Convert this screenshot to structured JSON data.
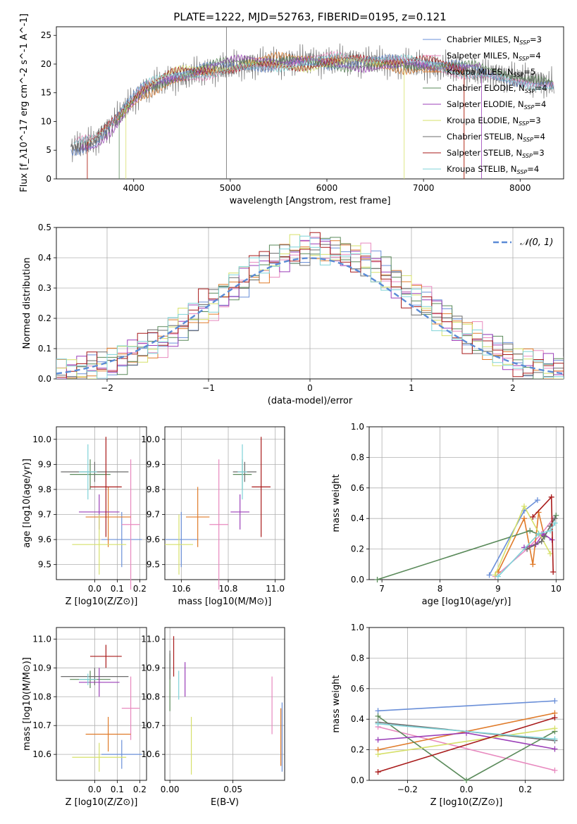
{
  "title": "PLATE=1222, MJD=52763, FIBERID=0195, z=0.121",
  "colors": {
    "Chabrier MILES": "#6a8fd8",
    "Salpeter MILES": "#e889bf",
    "Kroupa MILES": "#e07b2a",
    "Chabrier ELODIE": "#5a8a5a",
    "Salpeter ELODIE": "#9b3fb8",
    "Kroupa ELODIE": "#d6e06a",
    "Chabrier STELIB": "#6b6b6b",
    "Salpeter STELIB": "#a81a1a",
    "Kroupa STELIB": "#7fd3d8"
  },
  "chart_data": [
    {
      "id": "spectrum",
      "type": "line",
      "xlabel": "wavelength [Angstrom, rest frame]",
      "ylabel": "Flux [f_λ10^-17 erg cm^-2 s^-1 A^-1]",
      "xlim": [
        3200,
        8450
      ],
      "ylim": [
        0,
        26.5
      ],
      "xticks": [
        4000,
        5000,
        6000,
        7000,
        8000
      ],
      "yticks": [
        0,
        5,
        10,
        15,
        20,
        25
      ],
      "legend_position": "top-right",
      "legend": [
        {
          "label": "Chabrier MILES, N",
          "sub": "SSP",
          "suffix": "=3"
        },
        {
          "label": "Salpeter MILES, N",
          "sub": "SSP",
          "suffix": "=4"
        },
        {
          "label": "Kroupa MILES, N",
          "sub": "SSP",
          "suffix": "=5"
        },
        {
          "label": "Chabrier ELODIE, N",
          "sub": "SSP",
          "suffix": "=4"
        },
        {
          "label": "Salpeter ELODIE, N",
          "sub": "SSP",
          "suffix": "=4"
        },
        {
          "label": "Kroupa ELODIE, N",
          "sub": "SSP",
          "suffix": "=3"
        },
        {
          "label": "Chabrier STELIB, N",
          "sub": "SSP",
          "suffix": "=4"
        },
        {
          "label": "Salpeter STELIB, N",
          "sub": "SSP",
          "suffix": "=3"
        },
        {
          "label": "Kroupa STELIB, N",
          "sub": "SSP",
          "suffix": "=4"
        }
      ],
      "continuum": [
        [
          3380,
          5.5
        ],
        [
          3600,
          6.5
        ],
        [
          3800,
          10
        ],
        [
          3950,
          13
        ],
        [
          4100,
          15.5
        ],
        [
          4400,
          17.5
        ],
        [
          4800,
          19
        ],
        [
          5200,
          20
        ],
        [
          5700,
          20.5
        ],
        [
          6300,
          20.5
        ],
        [
          6800,
          20
        ],
        [
          7200,
          19.5
        ],
        [
          7600,
          18.5
        ],
        [
          8000,
          17.5
        ],
        [
          8350,
          16.5
        ]
      ],
      "model_ranges": [
        [
          3350,
          8350
        ],
        [
          3400,
          8350
        ],
        [
          3520,
          7420
        ],
        [
          3850,
          8350
        ],
        [
          3450,
          7600
        ],
        [
          3920,
          6800
        ],
        [
          3350,
          8350
        ],
        [
          3520,
          7420
        ],
        [
          3380,
          8350
        ]
      ],
      "spike_features": [
        4960,
        6800,
        7420,
        3940
      ]
    },
    {
      "id": "residuals",
      "type": "histogram",
      "xlabel": "(data-model)/error",
      "ylabel": "Normed distribution",
      "xlim": [
        -2.5,
        2.5
      ],
      "ylim": [
        0,
        0.5
      ],
      "xticks": [
        -2,
        -1,
        0,
        1,
        2
      ],
      "yticks": [
        0.0,
        0.1,
        0.2,
        0.3,
        0.4,
        0.5
      ],
      "bin_width": 0.1,
      "reference_curve": "N(0,1)",
      "legend_position": "top-right",
      "legend": [
        "𝒩(0, 1)"
      ]
    },
    {
      "id": "age_vs_Z",
      "type": "errorbar",
      "xlabel": "Z [log10(Z/Z⊙)]",
      "ylabel": "age [log10(age/yr)]",
      "xlim": [
        -0.17,
        0.23
      ],
      "ylim": [
        9.44,
        10.05
      ],
      "xticks": [
        0.0,
        0.1,
        0.2
      ],
      "yticks": [
        9.5,
        9.6,
        9.7,
        9.8,
        9.9,
        10.0
      ],
      "points": [
        {
          "x": 0.12,
          "y": 9.6,
          "xerr": 0.09,
          "yerr": 0.11
        },
        {
          "x": 0.16,
          "y": 9.66,
          "xerr": 0.04,
          "yerr": 0.26
        },
        {
          "x": 0.06,
          "y": 9.69,
          "xerr": 0.1,
          "yerr": 0.12
        },
        {
          "x": -0.02,
          "y": 9.86,
          "xerr": 0.09,
          "yerr": 0.06
        },
        {
          "x": 0.02,
          "y": 9.71,
          "xerr": 0.09,
          "yerr": 0.07
        },
        {
          "x": 0.02,
          "y": 9.58,
          "xerr": 0.12,
          "yerr": 0.12
        },
        {
          "x": 0.0,
          "y": 9.87,
          "xerr": 0.15,
          "yerr": 0.04
        },
        {
          "x": 0.05,
          "y": 9.81,
          "xerr": 0.07,
          "yerr": 0.2
        },
        {
          "x": -0.03,
          "y": 9.87,
          "xerr": 0.04,
          "yerr": 0.11
        }
      ]
    },
    {
      "id": "age_vs_mass",
      "type": "errorbar",
      "xlabel": "mass [log10(M/M⊙)]",
      "ylabel": "",
      "xlim": [
        10.53,
        11.04
      ],
      "ylim": [
        9.44,
        10.05
      ],
      "xticks": [
        10.6,
        10.8,
        11.0
      ],
      "yticks": [
        9.5,
        9.6,
        9.7,
        9.8,
        9.9,
        10.0
      ],
      "points": [
        {
          "x": 10.6,
          "y": 9.6,
          "xerr": 0.07,
          "yerr": 0.11
        },
        {
          "x": 10.76,
          "y": 9.66,
          "xerr": 0.04,
          "yerr": 0.26
        },
        {
          "x": 10.67,
          "y": 9.69,
          "xerr": 0.05,
          "yerr": 0.12
        },
        {
          "x": 10.86,
          "y": 9.86,
          "xerr": 0.04,
          "yerr": 0.06
        },
        {
          "x": 10.85,
          "y": 9.71,
          "xerr": 0.04,
          "yerr": 0.07
        },
        {
          "x": 10.59,
          "y": 9.58,
          "xerr": 0.06,
          "yerr": 0.12
        },
        {
          "x": 10.87,
          "y": 9.87,
          "xerr": 0.05,
          "yerr": 0.04
        },
        {
          "x": 10.94,
          "y": 9.81,
          "xerr": 0.04,
          "yerr": 0.2
        },
        {
          "x": 10.86,
          "y": 9.87,
          "xerr": 0.02,
          "yerr": 0.11
        }
      ]
    },
    {
      "id": "massweight_vs_age",
      "type": "line",
      "xlabel": "age [log10(age/yr)]",
      "ylabel": "mass weight",
      "xlim": [
        6.78,
        10.13
      ],
      "ylim": [
        0,
        1.0
      ],
      "xticks": [
        7,
        8,
        9,
        10
      ],
      "yticks": [
        0.0,
        0.2,
        0.4,
        0.6,
        0.8,
        1.0
      ],
      "series": [
        {
          "x": [
            8.85,
            9.45,
            9.68
          ],
          "y": [
            0.03,
            0.45,
            0.52
          ]
        },
        {
          "x": [
            8.95,
            9.5,
            9.75,
            9.95
          ],
          "y": [
            0.02,
            0.2,
            0.3,
            0.4
          ]
        },
        {
          "x": [
            9.0,
            9.45,
            9.6,
            9.7,
            9.8
          ],
          "y": [
            0.05,
            0.4,
            0.1,
            0.44,
            0.28
          ]
        },
        {
          "x": [
            6.92,
            9.55,
            9.8,
            10.0
          ],
          "y": [
            0.0,
            0.32,
            0.28,
            0.42
          ]
        },
        {
          "x": [
            9.45,
            9.65,
            9.78,
            9.93
          ],
          "y": [
            0.21,
            0.23,
            0.3,
            0.26
          ]
        },
        {
          "x": [
            8.95,
            9.45,
            9.9
          ],
          "y": [
            0.03,
            0.48,
            0.17
          ]
        },
        {
          "x": [
            9.5,
            9.75,
            9.9,
            9.98
          ],
          "y": [
            0.2,
            0.25,
            0.35,
            0.4
          ]
        },
        {
          "x": [
            9.6,
            9.92,
            9.95
          ],
          "y": [
            0.41,
            0.54,
            0.05
          ]
        },
        {
          "x": [
            9.0,
            9.7,
            9.9,
            9.98
          ],
          "y": [
            0.02,
            0.3,
            0.32,
            0.37
          ]
        }
      ]
    },
    {
      "id": "mass_vs_Z",
      "type": "errorbar",
      "xlabel": "Z [log10(Z/Z⊙)]",
      "ylabel": "mass [log10(M/M⊙)]",
      "xlim": [
        -0.17,
        0.23
      ],
      "ylim": [
        10.51,
        11.04
      ],
      "xticks": [
        0.0,
        0.1,
        0.2
      ],
      "yticks": [
        10.6,
        10.7,
        10.8,
        10.9,
        11.0
      ],
      "points": [
        {
          "x": 0.12,
          "y": 10.6,
          "xerr": 0.09,
          "yerr": 0.05
        },
        {
          "x": 0.16,
          "y": 10.76,
          "xerr": 0.04,
          "yerr": 0.11
        },
        {
          "x": 0.06,
          "y": 10.67,
          "xerr": 0.1,
          "yerr": 0.06
        },
        {
          "x": -0.02,
          "y": 10.86,
          "xerr": 0.09,
          "yerr": 0.03
        },
        {
          "x": 0.02,
          "y": 10.85,
          "xerr": 0.09,
          "yerr": 0.05
        },
        {
          "x": 0.02,
          "y": 10.59,
          "xerr": 0.12,
          "yerr": 0.05
        },
        {
          "x": 0.0,
          "y": 10.87,
          "xerr": 0.15,
          "yerr": 0.03
        },
        {
          "x": 0.05,
          "y": 10.94,
          "xerr": 0.07,
          "yerr": 0.04
        },
        {
          "x": -0.03,
          "y": 10.86,
          "xerr": 0.04,
          "yerr": 0.02
        }
      ]
    },
    {
      "id": "mass_vs_ebv",
      "type": "errorbar",
      "xlabel": "E(B-V)",
      "ylabel": "",
      "xlim": [
        -0.004,
        0.091
      ],
      "ylim": [
        10.51,
        11.04
      ],
      "xticks": [
        0.0,
        0.05
      ],
      "yticks": [
        10.6,
        10.7,
        10.8,
        10.9,
        11.0
      ],
      "points": [
        {
          "x": 0.089,
          "y": 10.66,
          "yerr": 0.12
        },
        {
          "x": 0.081,
          "y": 10.77,
          "yerr": 0.1
        },
        {
          "x": 0.088,
          "y": 10.66,
          "yerr": 0.1
        },
        {
          "x": 0.0,
          "y": 10.85,
          "yerr": 0.1
        },
        {
          "x": 0.012,
          "y": 10.86,
          "yerr": 0.06
        },
        {
          "x": 0.017,
          "y": 10.63,
          "yerr": 0.1
        },
        {
          "x": 0.0,
          "y": 10.91,
          "yerr": 0.05
        },
        {
          "x": 0.003,
          "y": 10.94,
          "yerr": 0.07
        },
        {
          "x": 0.007,
          "y": 10.84,
          "yerr": 0.05
        }
      ]
    },
    {
      "id": "massweight_vs_Z",
      "type": "line",
      "xlabel": "Z [log10(Z/Z⊙)]",
      "ylabel": "mass weight",
      "xlim": [
        -0.33,
        0.33
      ],
      "ylim": [
        0,
        1.0
      ],
      "xticks": [
        -0.2,
        0.0,
        0.2
      ],
      "yticks": [
        0.0,
        0.2,
        0.4,
        0.6,
        0.8,
        1.0
      ],
      "series": [
        {
          "x": [
            -0.3,
            0.3
          ],
          "y": [
            0.455,
            0.52
          ]
        },
        {
          "x": [
            -0.3,
            0.3
          ],
          "y": [
            0.35,
            0.065
          ]
        },
        {
          "x": [
            -0.3,
            0.3
          ],
          "y": [
            0.2,
            0.44
          ]
        },
        {
          "x": [
            -0.3,
            0.0,
            0.3
          ],
          "y": [
            0.42,
            0.0,
            0.32
          ]
        },
        {
          "x": [
            -0.3,
            0.0,
            0.3
          ],
          "y": [
            0.265,
            0.31,
            0.205
          ]
        },
        {
          "x": [
            -0.3,
            0.3
          ],
          "y": [
            0.17,
            0.34
          ]
        },
        {
          "x": [
            -0.3,
            0.3
          ],
          "y": [
            0.38,
            0.26
          ]
        },
        {
          "x": [
            -0.3,
            0.3
          ],
          "y": [
            0.055,
            0.41
          ]
        },
        {
          "x": [
            -0.3,
            0.3
          ],
          "y": [
            0.37,
            0.27
          ]
        }
      ]
    }
  ]
}
